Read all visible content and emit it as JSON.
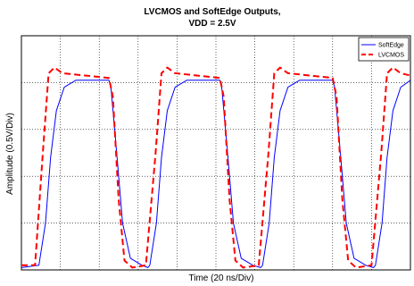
{
  "chart_data": {
    "type": "line",
    "title": "LVCMOS and SoftEdge Outputs,",
    "subtitle": "VDD = 2.5V",
    "xlabel": "Time (20 ns/Div)",
    "ylabel": "Amplitude (0.5V/Div)",
    "xlim": [
      0,
      10
    ],
    "ylim": [
      0,
      5
    ],
    "grid": true,
    "tick_labels": false,
    "legend_position": "top-right",
    "series": [
      {
        "name": "SoftEdge",
        "color": "#0000ff",
        "style": "solid",
        "points": [
          [
            0,
            0.05
          ],
          [
            0.45,
            0.1
          ],
          [
            0.62,
            1.0
          ],
          [
            0.75,
            2.4
          ],
          [
            0.9,
            3.4
          ],
          [
            1.1,
            3.9
          ],
          [
            1.4,
            4.05
          ],
          [
            2.25,
            4.05
          ],
          [
            2.3,
            3.9
          ],
          [
            2.45,
            2.5
          ],
          [
            2.6,
            1.0
          ],
          [
            2.8,
            0.25
          ],
          [
            3.1,
            0.1
          ],
          [
            3.25,
            0.05
          ],
          [
            3.3,
            0.1
          ],
          [
            3.47,
            1.0
          ],
          [
            3.6,
            2.4
          ],
          [
            3.75,
            3.4
          ],
          [
            3.95,
            3.9
          ],
          [
            4.25,
            4.05
          ],
          [
            5.1,
            4.05
          ],
          [
            5.15,
            3.9
          ],
          [
            5.3,
            2.5
          ],
          [
            5.45,
            1.0
          ],
          [
            5.65,
            0.25
          ],
          [
            5.95,
            0.1
          ],
          [
            6.15,
            0.05
          ],
          [
            6.2,
            0.1
          ],
          [
            6.37,
            1.0
          ],
          [
            6.5,
            2.4
          ],
          [
            6.65,
            3.4
          ],
          [
            6.85,
            3.9
          ],
          [
            7.15,
            4.05
          ],
          [
            8.0,
            4.05
          ],
          [
            8.05,
            3.9
          ],
          [
            8.2,
            2.5
          ],
          [
            8.35,
            1.0
          ],
          [
            8.55,
            0.25
          ],
          [
            8.85,
            0.1
          ],
          [
            9.05,
            0.05
          ],
          [
            9.1,
            0.1
          ],
          [
            9.27,
            1.0
          ],
          [
            9.4,
            2.4
          ],
          [
            9.55,
            3.4
          ],
          [
            9.75,
            3.9
          ],
          [
            10.0,
            4.05
          ]
        ]
      },
      {
        "name": "LVCMOS",
        "color": "#ff0000",
        "style": "dashed",
        "points": [
          [
            0,
            0.1
          ],
          [
            0.35,
            0.1
          ],
          [
            0.55,
            2.5
          ],
          [
            0.7,
            4.2
          ],
          [
            0.85,
            4.32
          ],
          [
            1.05,
            4.2
          ],
          [
            2.25,
            4.1
          ],
          [
            2.35,
            3.7
          ],
          [
            2.5,
            1.5
          ],
          [
            2.65,
            0.2
          ],
          [
            2.85,
            0.05
          ],
          [
            3.2,
            0.1
          ],
          [
            3.45,
            2.5
          ],
          [
            3.6,
            4.2
          ],
          [
            3.75,
            4.32
          ],
          [
            3.95,
            4.2
          ],
          [
            5.1,
            4.1
          ],
          [
            5.2,
            3.7
          ],
          [
            5.35,
            1.5
          ],
          [
            5.5,
            0.2
          ],
          [
            5.7,
            0.05
          ],
          [
            6.1,
            0.1
          ],
          [
            6.35,
            2.5
          ],
          [
            6.5,
            4.2
          ],
          [
            6.65,
            4.32
          ],
          [
            6.85,
            4.2
          ],
          [
            8.0,
            4.1
          ],
          [
            8.1,
            3.7
          ],
          [
            8.25,
            1.5
          ],
          [
            8.4,
            0.2
          ],
          [
            8.6,
            0.05
          ],
          [
            9.0,
            0.1
          ],
          [
            9.25,
            2.5
          ],
          [
            9.4,
            4.2
          ],
          [
            9.55,
            4.32
          ],
          [
            9.75,
            4.2
          ],
          [
            10.0,
            4.15
          ]
        ]
      }
    ]
  }
}
